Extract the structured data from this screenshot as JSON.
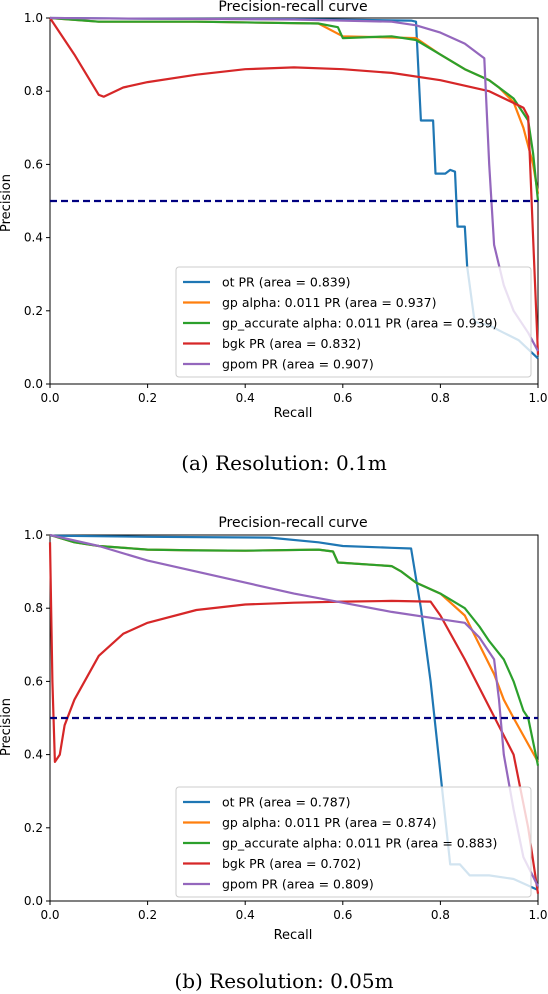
{
  "chart_data": [
    {
      "type": "line",
      "title": "Precision-recall curve",
      "xlabel": "Recall",
      "ylabel": "Precision",
      "xlim": [
        0.0,
        1.0
      ],
      "ylim": [
        0.0,
        1.0
      ],
      "x_ticks": [
        "0.0",
        "0.2",
        "0.4",
        "0.6",
        "0.8",
        "1.0"
      ],
      "y_ticks": [
        "0.0",
        "0.2",
        "0.4",
        "0.6",
        "0.8",
        "1.0"
      ],
      "legend_position": "lower-right",
      "caption": "(a) Resolution: 0.1m",
      "baseline": {
        "y": 0.5,
        "color": "#000080",
        "style": "dashed"
      },
      "series": [
        {
          "name": "ot PR (area = 0.839)",
          "color": "#1f77b4",
          "points": [
            [
              0,
              1.0
            ],
            [
              0.2,
              0.998
            ],
            [
              0.5,
              0.997
            ],
            [
              0.74,
              0.993
            ],
            [
              0.75,
              0.99
            ],
            [
              0.76,
              0.72
            ],
            [
              0.785,
              0.72
            ],
            [
              0.79,
              0.575
            ],
            [
              0.81,
              0.575
            ],
            [
              0.82,
              0.585
            ],
            [
              0.83,
              0.58
            ],
            [
              0.835,
              0.43
            ],
            [
              0.85,
              0.43
            ],
            [
              0.855,
              0.32
            ],
            [
              0.86,
              0.27
            ],
            [
              0.87,
              0.17
            ],
            [
              0.9,
              0.16
            ],
            [
              0.93,
              0.14
            ],
            [
              0.96,
              0.12
            ],
            [
              1.0,
              0.07
            ]
          ]
        },
        {
          "name": "gp alpha: 0.011 PR (area = 0.937)",
          "color": "#ff7f0e",
          "points": [
            [
              0,
              1.0
            ],
            [
              0.1,
              0.99
            ],
            [
              0.3,
              0.99
            ],
            [
              0.55,
              0.985
            ],
            [
              0.6,
              0.95
            ],
            [
              0.75,
              0.945
            ],
            [
              0.8,
              0.9
            ],
            [
              0.85,
              0.86
            ],
            [
              0.9,
              0.83
            ],
            [
              0.92,
              0.81
            ],
            [
              0.95,
              0.77
            ],
            [
              0.97,
              0.7
            ],
            [
              0.99,
              0.6
            ],
            [
              1.0,
              0.52
            ]
          ]
        },
        {
          "name": "gp_accurate alpha: 0.011 PR (area = 0.939)",
          "color": "#2ca02c",
          "points": [
            [
              0,
              1.0
            ],
            [
              0.1,
              0.99
            ],
            [
              0.3,
              0.99
            ],
            [
              0.55,
              0.985
            ],
            [
              0.59,
              0.975
            ],
            [
              0.6,
              0.945
            ],
            [
              0.7,
              0.95
            ],
            [
              0.75,
              0.94
            ],
            [
              0.8,
              0.9
            ],
            [
              0.85,
              0.86
            ],
            [
              0.9,
              0.83
            ],
            [
              0.92,
              0.81
            ],
            [
              0.95,
              0.78
            ],
            [
              0.98,
              0.72
            ],
            [
              0.99,
              0.63
            ],
            [
              1.0,
              0.5
            ]
          ]
        },
        {
          "name": "bgk PR (area = 0.832)",
          "color": "#d62728",
          "points": [
            [
              0,
              1.0
            ],
            [
              0.05,
              0.9
            ],
            [
              0.1,
              0.79
            ],
            [
              0.11,
              0.785
            ],
            [
              0.15,
              0.81
            ],
            [
              0.2,
              0.825
            ],
            [
              0.3,
              0.845
            ],
            [
              0.4,
              0.86
            ],
            [
              0.5,
              0.865
            ],
            [
              0.6,
              0.86
            ],
            [
              0.7,
              0.85
            ],
            [
              0.8,
              0.83
            ],
            [
              0.9,
              0.8
            ],
            [
              0.97,
              0.755
            ],
            [
              0.98,
              0.73
            ],
            [
              0.99,
              0.4
            ],
            [
              1.0,
              0.08
            ]
          ]
        },
        {
          "name": "gpom PR (area = 0.907)",
          "color": "#9467bd",
          "points": [
            [
              0,
              1.0
            ],
            [
              0.2,
              0.998
            ],
            [
              0.5,
              0.996
            ],
            [
              0.7,
              0.99
            ],
            [
              0.75,
              0.98
            ],
            [
              0.8,
              0.96
            ],
            [
              0.85,
              0.93
            ],
            [
              0.88,
              0.9
            ],
            [
              0.89,
              0.89
            ],
            [
              0.9,
              0.6
            ],
            [
              0.91,
              0.38
            ],
            [
              0.93,
              0.27
            ],
            [
              0.95,
              0.2
            ],
            [
              0.98,
              0.14
            ],
            [
              1.0,
              0.09
            ]
          ]
        }
      ]
    },
    {
      "type": "line",
      "title": "Precision-recall curve",
      "xlabel": "Recall",
      "ylabel": "Precision",
      "xlim": [
        0.0,
        1.0
      ],
      "ylim": [
        0.0,
        1.0
      ],
      "x_ticks": [
        "0.0",
        "0.2",
        "0.4",
        "0.6",
        "0.8",
        "1.0"
      ],
      "y_ticks": [
        "0.0",
        "0.2",
        "0.4",
        "0.6",
        "0.8",
        "1.0"
      ],
      "legend_position": "lower-right",
      "caption": "(b) Resolution: 0.05m",
      "baseline": {
        "y": 0.5,
        "color": "#000080",
        "style": "dashed"
      },
      "series": [
        {
          "name": "ot PR (area = 0.787)",
          "color": "#1f77b4",
          "points": [
            [
              0,
              0.998
            ],
            [
              0.2,
              0.995
            ],
            [
              0.45,
              0.993
            ],
            [
              0.55,
              0.98
            ],
            [
              0.6,
              0.97
            ],
            [
              0.7,
              0.965
            ],
            [
              0.74,
              0.963
            ],
            [
              0.76,
              0.8
            ],
            [
              0.78,
              0.6
            ],
            [
              0.8,
              0.35
            ],
            [
              0.82,
              0.1
            ],
            [
              0.84,
              0.1
            ],
            [
              0.86,
              0.07
            ],
            [
              0.9,
              0.07
            ],
            [
              0.95,
              0.06
            ],
            [
              1.0,
              0.03
            ]
          ]
        },
        {
          "name": "gp alpha: 0.011 PR (area = 0.874)",
          "color": "#ff7f0e",
          "points": [
            [
              0,
              1.0
            ],
            [
              0.05,
              0.98
            ],
            [
              0.1,
              0.97
            ],
            [
              0.2,
              0.96
            ],
            [
              0.3,
              0.958
            ],
            [
              0.4,
              0.957
            ],
            [
              0.55,
              0.96
            ],
            [
              0.58,
              0.955
            ],
            [
              0.59,
              0.925
            ],
            [
              0.7,
              0.915
            ],
            [
              0.72,
              0.9
            ],
            [
              0.75,
              0.87
            ],
            [
              0.8,
              0.84
            ],
            [
              0.85,
              0.78
            ],
            [
              0.88,
              0.7
            ],
            [
              0.91,
              0.62
            ],
            [
              0.93,
              0.55
            ],
            [
              0.95,
              0.5
            ],
            [
              1.0,
              0.38
            ]
          ]
        },
        {
          "name": "gp_accurate alpha: 0.011 PR (area = 0.883)",
          "color": "#2ca02c",
          "points": [
            [
              0,
              1.0
            ],
            [
              0.05,
              0.98
            ],
            [
              0.1,
              0.97
            ],
            [
              0.2,
              0.96
            ],
            [
              0.3,
              0.958
            ],
            [
              0.4,
              0.957
            ],
            [
              0.55,
              0.96
            ],
            [
              0.58,
              0.955
            ],
            [
              0.59,
              0.925
            ],
            [
              0.7,
              0.915
            ],
            [
              0.72,
              0.9
            ],
            [
              0.75,
              0.87
            ],
            [
              0.8,
              0.84
            ],
            [
              0.85,
              0.8
            ],
            [
              0.88,
              0.75
            ],
            [
              0.9,
              0.71
            ],
            [
              0.93,
              0.66
            ],
            [
              0.95,
              0.6
            ],
            [
              0.97,
              0.52
            ],
            [
              0.98,
              0.5
            ],
            [
              1.0,
              0.37
            ]
          ]
        },
        {
          "name": "bgk PR (area = 0.702)",
          "color": "#d62728",
          "points": [
            [
              0,
              0.98
            ],
            [
              0.005,
              0.6
            ],
            [
              0.01,
              0.38
            ],
            [
              0.02,
              0.4
            ],
            [
              0.03,
              0.48
            ],
            [
              0.05,
              0.55
            ],
            [
              0.1,
              0.67
            ],
            [
              0.15,
              0.73
            ],
            [
              0.2,
              0.76
            ],
            [
              0.3,
              0.795
            ],
            [
              0.4,
              0.81
            ],
            [
              0.5,
              0.815
            ],
            [
              0.6,
              0.818
            ],
            [
              0.7,
              0.82
            ],
            [
              0.78,
              0.818
            ],
            [
              0.8,
              0.78
            ],
            [
              0.85,
              0.66
            ],
            [
              0.9,
              0.53
            ],
            [
              0.95,
              0.4
            ],
            [
              0.98,
              0.2
            ],
            [
              1.0,
              0.02
            ]
          ]
        },
        {
          "name": "gpom PR (area = 0.809)",
          "color": "#9467bd",
          "points": [
            [
              0,
              1.0
            ],
            [
              0.1,
              0.97
            ],
            [
              0.2,
              0.93
            ],
            [
              0.3,
              0.9
            ],
            [
              0.4,
              0.87
            ],
            [
              0.5,
              0.84
            ],
            [
              0.6,
              0.815
            ],
            [
              0.7,
              0.79
            ],
            [
              0.8,
              0.77
            ],
            [
              0.85,
              0.76
            ],
            [
              0.88,
              0.72
            ],
            [
              0.9,
              0.68
            ],
            [
              0.91,
              0.66
            ],
            [
              0.92,
              0.55
            ],
            [
              0.93,
              0.4
            ],
            [
              0.95,
              0.25
            ],
            [
              0.97,
              0.12
            ],
            [
              1.0,
              0.04
            ]
          ]
        }
      ]
    }
  ]
}
